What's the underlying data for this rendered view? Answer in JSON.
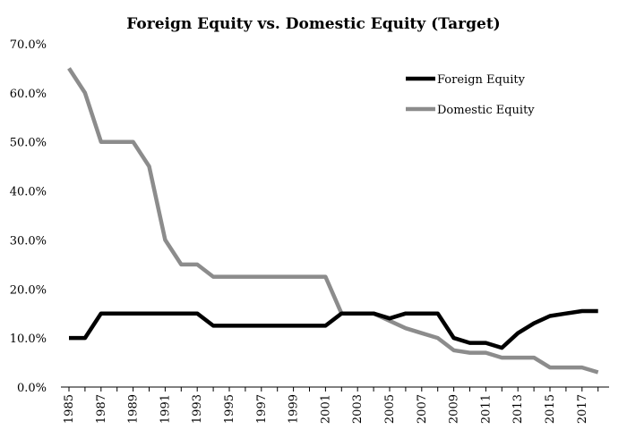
{
  "chart_data": {
    "type": "line",
    "title": "Foreign Equity vs. Domestic Equity (Target)",
    "xlabel": "",
    "ylabel": "",
    "x": [
      1985,
      1986,
      1987,
      1988,
      1989,
      1990,
      1991,
      1992,
      1993,
      1994,
      1995,
      1996,
      1997,
      1998,
      1999,
      2000,
      2001,
      2002,
      2003,
      2004,
      2005,
      2006,
      2007,
      2008,
      2009,
      2010,
      2011,
      2012,
      2013,
      2014,
      2015,
      2016,
      2017,
      2018
    ],
    "x_tick_labels": [
      "1985",
      "1987",
      "1989",
      "1991",
      "1993",
      "1995",
      "1997",
      "1999",
      "2001",
      "2003",
      "2005",
      "2007",
      "2009",
      "2011",
      "2013",
      "2015",
      "2017"
    ],
    "y_tick_labels": [
      "0.0%",
      "10.0%",
      "20.0%",
      "30.0%",
      "40.0%",
      "50.0%",
      "60.0%",
      "70.0%"
    ],
    "ylim": [
      0,
      70
    ],
    "y_unit": "percent",
    "grid": false,
    "legend_position": "top-right",
    "series": [
      {
        "name": "Foreign Equity",
        "color": "#000000",
        "values": [
          10,
          10,
          15,
          15,
          15,
          15,
          15,
          15,
          15,
          12.5,
          12.5,
          12.5,
          12.5,
          12.5,
          12.5,
          12.5,
          12.5,
          15,
          15,
          15,
          14,
          15,
          15,
          15,
          10,
          9,
          9,
          8,
          11,
          13,
          14.5,
          15,
          15.5,
          15.5
        ]
      },
      {
        "name": "Domestic Equity",
        "color": "#8c8c8c",
        "values": [
          65,
          60,
          50,
          50,
          50,
          45,
          30,
          25,
          25,
          22.5,
          22.5,
          22.5,
          22.5,
          22.5,
          22.5,
          22.5,
          22.5,
          15,
          15,
          15,
          13.5,
          12,
          11,
          10,
          7.5,
          7,
          7,
          6,
          6,
          6,
          4,
          4,
          4,
          3
        ]
      }
    ]
  }
}
